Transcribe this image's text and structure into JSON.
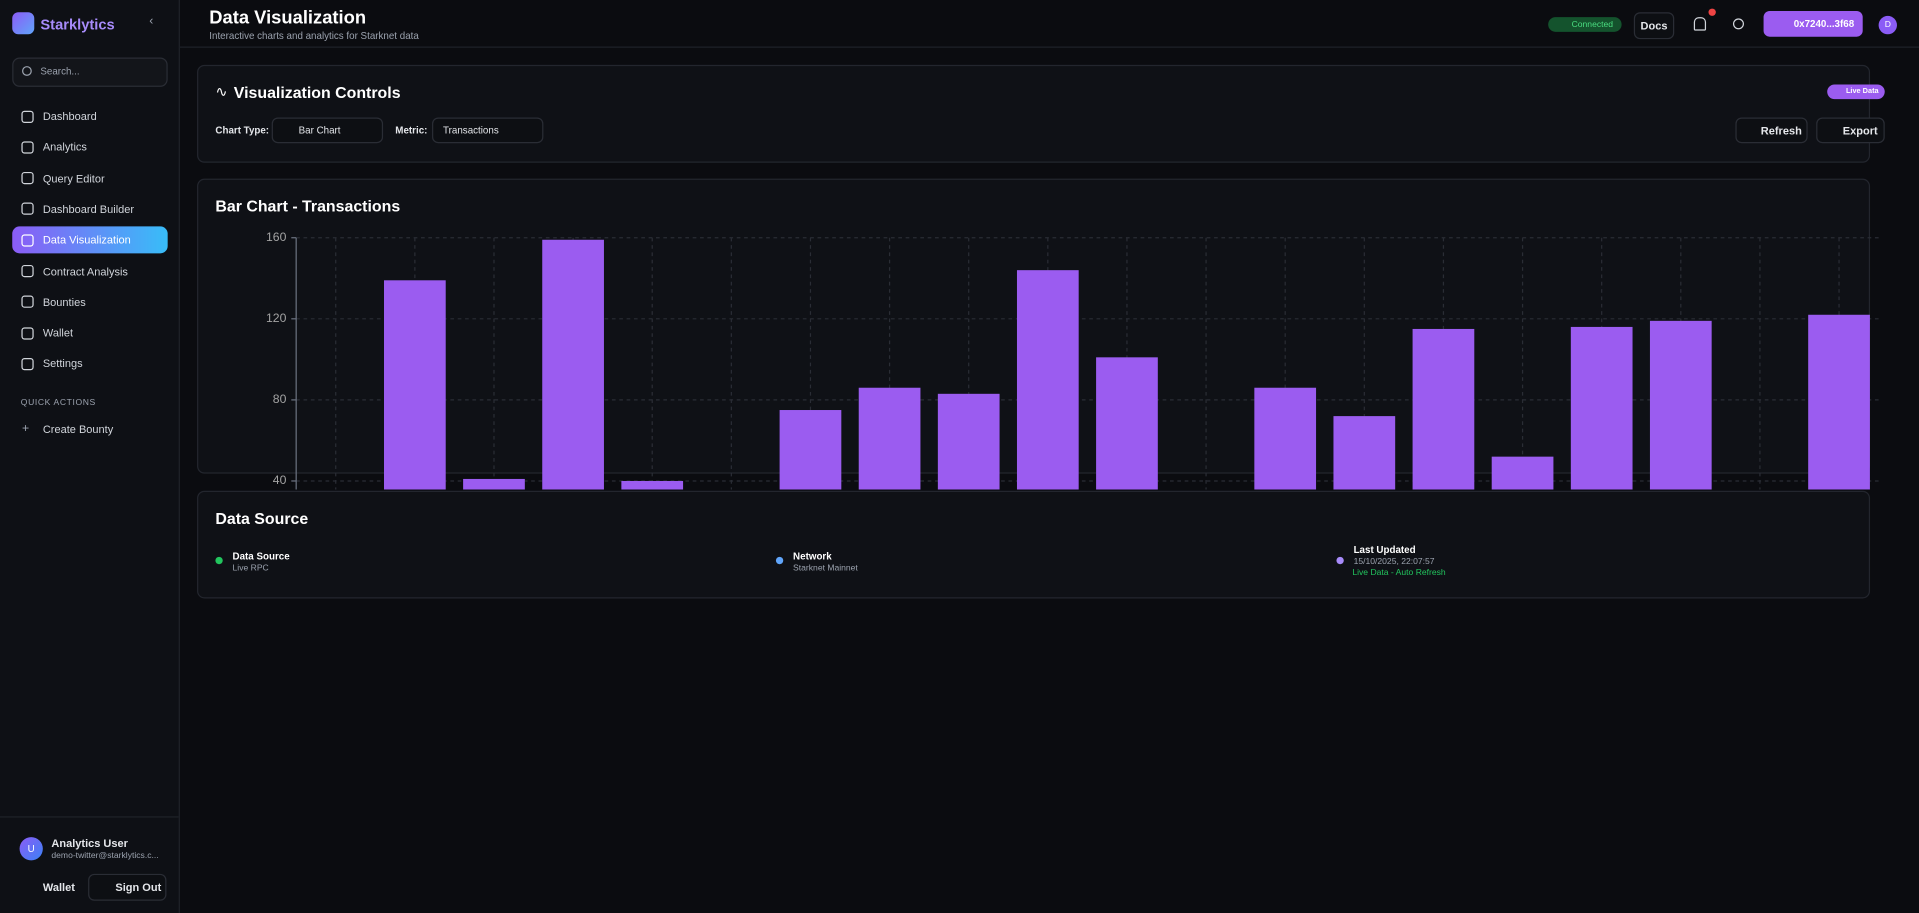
{
  "sidebar": {
    "brand": "Starklytics",
    "search": "Search...",
    "nav": [
      "Dashboard",
      "Analytics",
      "Query Editor",
      "Dashboard Builder",
      "Data Visualization",
      "Contract Analysis",
      "Bounties",
      "Wallet",
      "Settings"
    ],
    "quick_actions": "QUICK ACTIONS",
    "create_bounty": "Create Bounty",
    "user_initial": "U",
    "user_name": "Analytics User",
    "user_email": "demo-twitter@starklytics.c...",
    "wallet": "Wallet",
    "sign_out": "Sign Out"
  },
  "header": {
    "title": "Data Visualization",
    "subtitle": "Interactive charts and analytics for Starknet data",
    "status": "Connected",
    "docs": "Docs",
    "address": "0x7240...3f68",
    "avatar": "D"
  },
  "controls": {
    "title": "Visualization Controls",
    "badge": "Live Data",
    "chart_type_label": "Chart Type:",
    "chart_type": "Bar Chart",
    "metric_label": "Metric:",
    "metric": "Transactions",
    "refresh": "Refresh",
    "export": "Export"
  },
  "chart_data": {
    "type": "bar",
    "title": "Bar Chart - Transactions",
    "values": [
      null,
      139,
      41,
      159,
      40,
      null,
      75,
      86,
      83,
      144,
      101,
      null,
      86,
      72,
      115,
      52,
      116,
      119,
      null,
      122
    ],
    "color": "#9b5cf0",
    "ylim": [
      0,
      160
    ],
    "yticks": [
      40,
      80,
      120,
      160
    ],
    "grid": true
  },
  "data_source": {
    "title": "Data Source",
    "items": [
      {
        "label": "Data Source",
        "value": "Live RPC",
        "color": "#22c55e"
      },
      {
        "label": "Network",
        "value": "Starknet Mainnet",
        "color": "#60a5fa"
      },
      {
        "label": "Last Updated",
        "value": "15/10/2025, 22:07:57",
        "color": "#a78bfa"
      }
    ],
    "status": "Live Data - Auto Refresh"
  }
}
